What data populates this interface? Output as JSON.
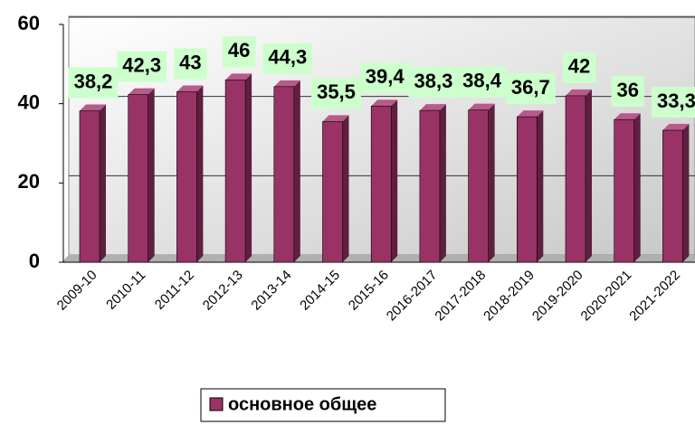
{
  "chart_data": {
    "type": "bar",
    "categories": [
      "2009-10",
      "2010-11",
      "2011-12",
      "2012-13",
      "2013-14",
      "2014-15",
      "2015-16",
      "2016-2017",
      "2017-2018",
      "2018-2019",
      "2019-2020",
      "2020-2021",
      "2021-2022"
    ],
    "series": [
      {
        "name": "основное общее",
        "color": "#993366",
        "values": [
          38.2,
          42.3,
          43,
          46,
          44.3,
          35.5,
          39.4,
          38.3,
          38.4,
          36.7,
          42,
          36,
          33.3
        ],
        "value_labels": [
          "38,2",
          "42,3",
          "43",
          "46",
          "44,3",
          "35,5",
          "39,4",
          "38,3",
          "38,4",
          "36,7",
          "42",
          "36",
          "33,3"
        ]
      }
    ],
    "ylim": [
      0,
      60
    ],
    "yticks": [
      0,
      20,
      40,
      60
    ],
    "grid": true,
    "legend": "bottom"
  }
}
